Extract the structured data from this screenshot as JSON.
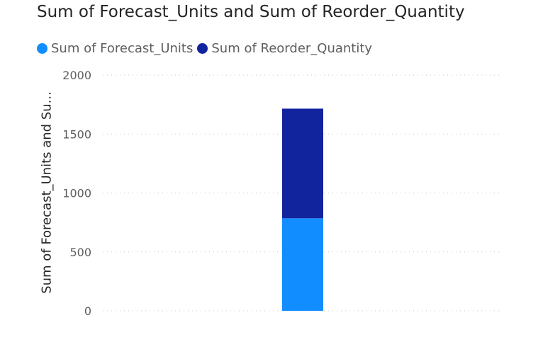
{
  "chart_data": {
    "type": "bar",
    "stacked": true,
    "title": "Sum of Forecast_Units and Sum of Reorder_Quantity",
    "xlabel": "",
    "ylabel": "Sum of Forecast_Units and Su...",
    "categories": [
      ""
    ],
    "series": [
      {
        "name": "Sum of Forecast_Units",
        "values": [
          785
        ],
        "color": "#118DFF"
      },
      {
        "name": "Sum of Reorder_Quantity",
        "values": [
          930
        ],
        "color": "#12239E"
      }
    ],
    "ylim": [
      0,
      2000
    ],
    "yticks": [
      "0",
      "500",
      "1000",
      "1500",
      "2000"
    ],
    "grid": true,
    "legend_position": "top-left"
  }
}
